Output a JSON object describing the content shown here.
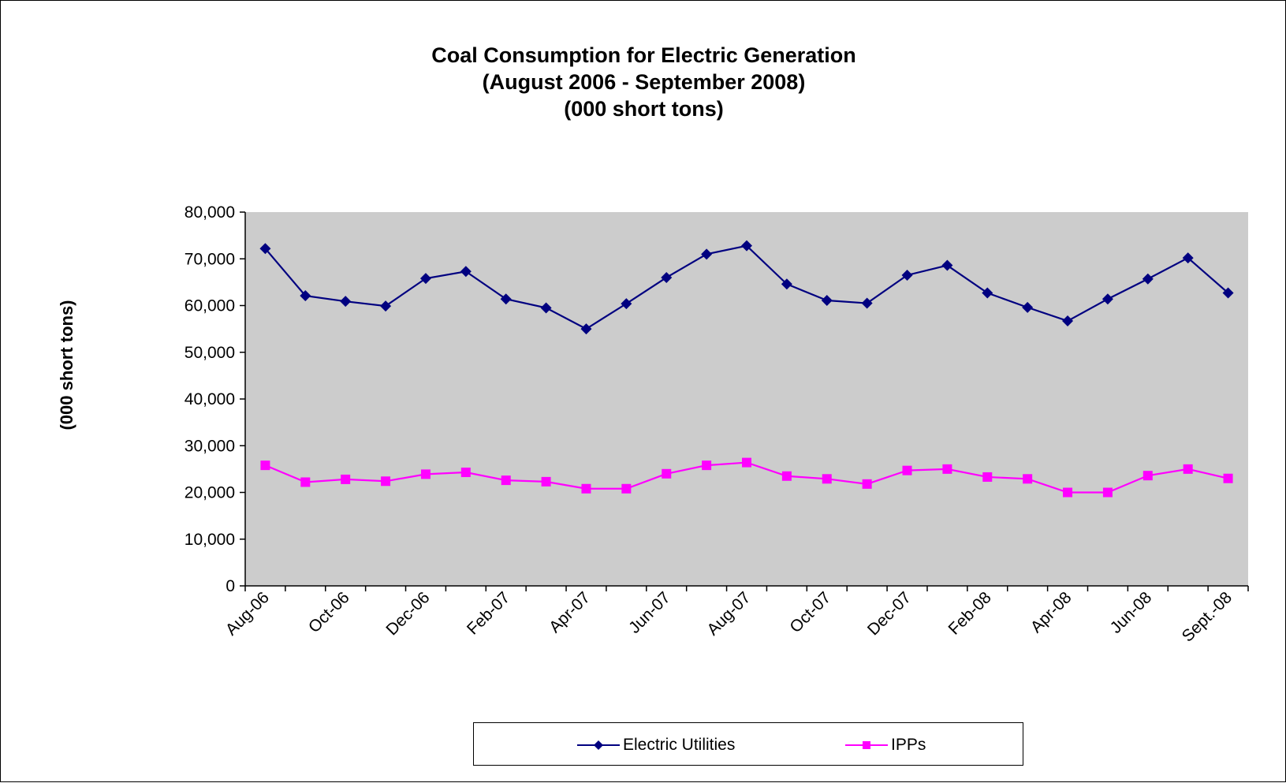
{
  "chart_data": {
    "type": "line",
    "title": "Coal Consumption for Electric Generation",
    "subtitle": [
      "(August 2006 - September 2008)",
      "(000 short tons)"
    ],
    "xlabel": "",
    "ylabel": "(000 short tons)",
    "ylim": [
      0,
      80000
    ],
    "yticks": [
      "0",
      "10,000",
      "20,000",
      "30,000",
      "40,000",
      "50,000",
      "60,000",
      "70,000",
      "80,000"
    ],
    "x": [
      "Aug-06",
      "Sep-06",
      "Oct-06",
      "Nov-06",
      "Dec-06",
      "Jan-07",
      "Feb-07",
      "Mar-07",
      "Apr-07",
      "May-07",
      "Jun-07",
      "Jul-07",
      "Aug-07",
      "Sep-07",
      "Oct-07",
      "Nov-07",
      "Dec-07",
      "Jan-08",
      "Feb-08",
      "Mar-08",
      "Apr-08",
      "May-08",
      "Jun-08",
      "Jul-08",
      "Sept.-08"
    ],
    "xtick_labels": [
      "Aug-06",
      "Oct-06",
      "Dec-06",
      "Feb-07",
      "Apr-07",
      "Jun-07",
      "Aug-07",
      "Oct-07",
      "Dec-07",
      "Feb-08",
      "Apr-08",
      "Jun-08",
      "Sept.-08"
    ],
    "series": [
      {
        "name": "Electric Utilities",
        "color": "#000080",
        "marker": "diamond",
        "values": [
          72200,
          62100,
          60900,
          59900,
          65800,
          67300,
          61400,
          59500,
          55000,
          60400,
          66000,
          71000,
          72800,
          64600,
          61100,
          60500,
          66500,
          68600,
          62700,
          59600,
          56700,
          61400,
          65700,
          70200,
          62700
        ]
      },
      {
        "name": "IPPs",
        "color": "#FF00FF",
        "marker": "square",
        "values": [
          25800,
          22200,
          22800,
          22400,
          23900,
          24300,
          22600,
          22300,
          20800,
          20800,
          24000,
          25800,
          26400,
          23500,
          22900,
          21800,
          24700,
          25000,
          23300,
          22900,
          20000,
          20000,
          23600,
          25000,
          23000
        ]
      }
    ],
    "plot_background": "#CCCCCC",
    "grid": false,
    "legend_position": "bottom"
  }
}
